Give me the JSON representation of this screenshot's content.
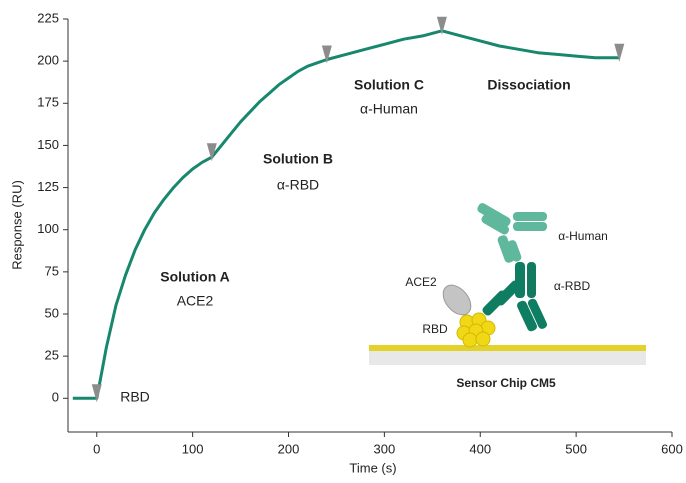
{
  "chart_data": {
    "type": "line",
    "x_label": "Time (s)",
    "y_label": "Response (RU)",
    "color": "#17876d",
    "x": [
      -25,
      0,
      5,
      10,
      20,
      30,
      40,
      50,
      60,
      70,
      80,
      90,
      100,
      110,
      120,
      130,
      140,
      150,
      160,
      170,
      180,
      190,
      200,
      210,
      220,
      230,
      240,
      260,
      280,
      300,
      320,
      340,
      360,
      380,
      400,
      420,
      440,
      460,
      480,
      500,
      520,
      545
    ],
    "values": [
      0,
      0,
      15,
      30,
      55,
      73,
      88,
      100,
      110,
      118,
      125,
      131,
      136,
      140,
      143,
      150,
      157,
      164,
      170,
      176,
      181,
      186,
      190,
      194,
      197,
      199,
      201,
      204,
      207,
      210,
      213,
      215,
      218,
      215,
      212,
      209,
      207,
      205,
      204,
      203,
      202,
      202
    ],
    "markers": {
      "color": "#8c8c8c",
      "x": [
        0,
        120,
        240,
        360,
        545
      ],
      "y": [
        0,
        143,
        201,
        218,
        202
      ]
    },
    "xlim": [
      -30,
      600
    ],
    "ylim": [
      -20,
      225
    ],
    "xticks": [
      0,
      100,
      200,
      300,
      400,
      500,
      600
    ],
    "yticks": [
      0,
      25,
      50,
      75,
      100,
      125,
      150,
      175,
      200,
      225
    ],
    "annotations": {
      "rbd": "RBD",
      "solution_a": "Solution A",
      "ace2": "ACE2",
      "solution_b": "Solution B",
      "alpha_rbd": "α-RBD",
      "solution_c": "Solution C",
      "alpha_human": "α-Human",
      "dissociation": "Dissociation"
    },
    "diagram": {
      "ace2": "ACE2",
      "rbd": "RBD",
      "alpha_human": "α-Human",
      "alpha_rbd": "α-RBD",
      "chip": "Sensor Chip CM5"
    }
  }
}
